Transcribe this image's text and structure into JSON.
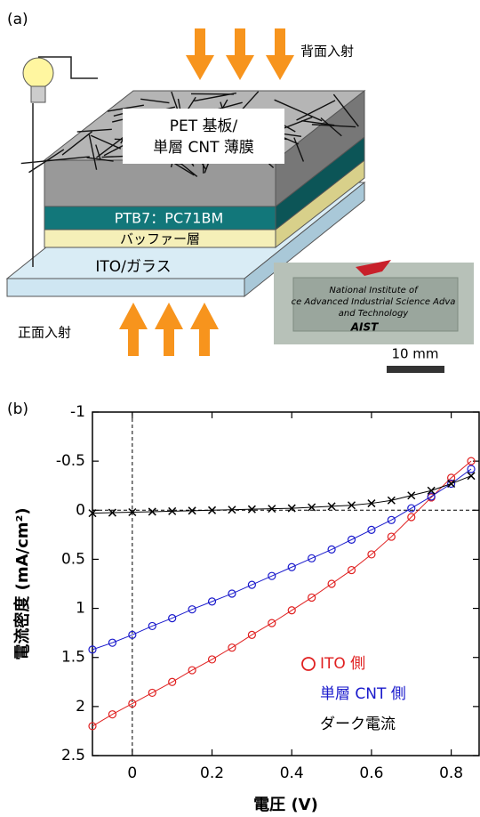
{
  "diagram": {
    "panel_label": "(a)",
    "back_light": "背面入射",
    "front_light": "正面入射",
    "top_label": [
      "PET 基板/",
      "単層 CNT 薄膜"
    ],
    "active_layer": "PTB7：PC71BM",
    "buffer_layer": "バッファー層",
    "substrate": "ITO/ガラス",
    "photo_text": [
      "National Institute of",
      "ce Advanced Industrial Science Adva",
      "and Technology",
      "AIST"
    ],
    "scale_bar": "10 mm"
  },
  "chart_data": {
    "type": "line",
    "panel_label": "(b)",
    "x_label": "電圧 (V)",
    "y_label": "電流密度 (mA/cm²)",
    "xlim": [
      -0.1,
      0.87
    ],
    "xticks": [
      0,
      0.2,
      0.4,
      0.6,
      0.8
    ],
    "ylim": [
      -1,
      2.5
    ],
    "yticks": [
      -1,
      -0.5,
      0,
      0.5,
      1,
      1.5,
      2,
      2.5
    ],
    "y_inverted": true,
    "zero_lines": true,
    "legend": "lower right",
    "x": [
      -0.1,
      -0.05,
      0,
      0.05,
      0.1,
      0.15,
      0.2,
      0.25,
      0.3,
      0.35,
      0.4,
      0.45,
      0.5,
      0.55,
      0.6,
      0.65,
      0.7,
      0.75,
      0.8,
      0.85
    ],
    "series": [
      {
        "name": "ITO 側",
        "color": "#e02020",
        "marker": "circle",
        "values": [
          2.2,
          2.08,
          1.97,
          1.86,
          1.75,
          1.63,
          1.52,
          1.4,
          1.27,
          1.15,
          1.02,
          0.89,
          0.75,
          0.61,
          0.45,
          0.27,
          0.07,
          -0.13,
          -0.33,
          -0.5
        ]
      },
      {
        "name": "単層 CNT 側",
        "color": "#1a1acc",
        "marker": "circle",
        "values": [
          1.42,
          1.35,
          1.27,
          1.18,
          1.1,
          1.01,
          0.93,
          0.85,
          0.76,
          0.67,
          0.58,
          0.49,
          0.4,
          0.3,
          0.2,
          0.1,
          -0.02,
          -0.14,
          -0.27,
          -0.42
        ]
      },
      {
        "name": "ダーク電流",
        "color": "#000000",
        "marker": "x",
        "values": [
          0.03,
          0.025,
          0.02,
          0.015,
          0.01,
          0.005,
          0,
          -0.005,
          -0.01,
          -0.015,
          -0.02,
          -0.03,
          -0.04,
          -0.05,
          -0.07,
          -0.1,
          -0.15,
          -0.2,
          -0.27,
          -0.35
        ]
      }
    ]
  }
}
